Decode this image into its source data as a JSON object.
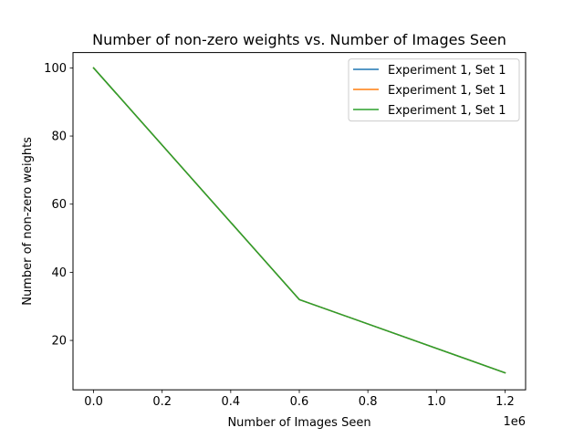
{
  "chart_data": {
    "type": "line",
    "title": "Number of non-zero weights vs. Number of Images Seen",
    "xlabel": "Number of Images Seen",
    "ylabel": "Number of non-zero weights",
    "x_offset_label": "1e6",
    "xlim": [
      -0.06,
      1.26
    ],
    "ylim": [
      5.5,
      104.5
    ],
    "x_ticks": [
      0.0,
      0.2,
      0.4,
      0.6,
      0.8,
      1.0,
      1.2
    ],
    "x_tick_labels": [
      "0.0",
      "0.2",
      "0.4",
      "0.6",
      "0.8",
      "1.0",
      "1.2"
    ],
    "y_ticks": [
      20,
      40,
      60,
      80,
      100
    ],
    "y_tick_labels": [
      "20",
      "40",
      "60",
      "80",
      "100"
    ],
    "grid": false,
    "legend_position": "top-right",
    "series": [
      {
        "name": "Experiment 1, Set 1",
        "color": "#1f77b4",
        "x": [
          0.0,
          0.6,
          1.2
        ],
        "y": [
          100,
          32,
          10.5
        ]
      },
      {
        "name": "Experiment 1, Set 1",
        "color": "#ff7f0e",
        "x": [
          0.0,
          0.6,
          1.2
        ],
        "y": [
          100,
          32,
          10.5
        ]
      },
      {
        "name": "Experiment 1, Set 1",
        "color": "#2ca02c",
        "x": [
          0.0,
          0.6,
          1.2
        ],
        "y": [
          100,
          32,
          10.5
        ]
      }
    ]
  }
}
